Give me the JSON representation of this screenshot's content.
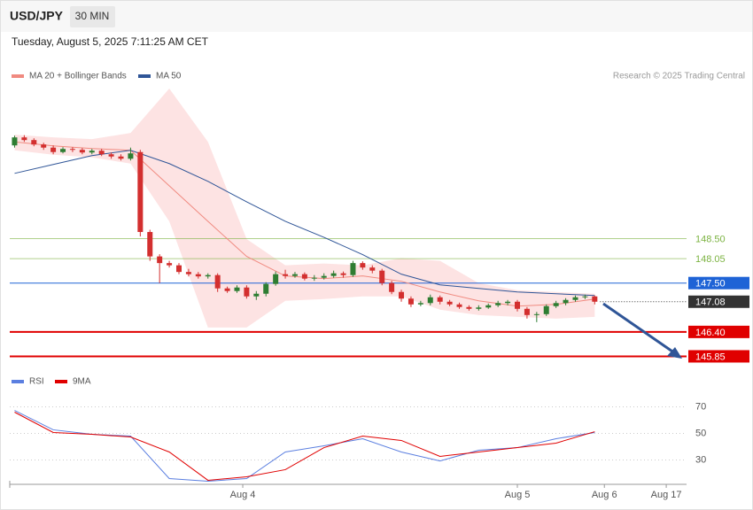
{
  "header": {
    "symbol": "USD/JPY",
    "interval": "30 MIN",
    "datetime": "Tuesday, August 5, 2025 7:11:25 AM CET"
  },
  "chart_data": [
    {
      "type": "candlestick",
      "source": "Research © 2025 Trading Central",
      "up_color": "#2e7d32",
      "down_color": "#d32f2f",
      "x": [
        0,
        1,
        2,
        3,
        4,
        5,
        6,
        7,
        8,
        9,
        10,
        11,
        12,
        13,
        14,
        15,
        16,
        17,
        18,
        19,
        20,
        21,
        22,
        23,
        24,
        25,
        26,
        27,
        28,
        29,
        30,
        31,
        32,
        33,
        34,
        35,
        36,
        37,
        38,
        39,
        40,
        41,
        42,
        43,
        44,
        45,
        46,
        47,
        48,
        49,
        50,
        51,
        52,
        53,
        54,
        55,
        56,
        57,
        58,
        59,
        60
      ],
      "open": [
        150.6,
        150.78,
        150.72,
        150.62,
        150.55,
        150.45,
        150.52,
        150.5,
        150.44,
        150.48,
        150.4,
        150.35,
        150.3,
        150.45,
        148.65,
        148.1,
        147.95,
        147.9,
        147.75,
        147.7,
        147.65,
        147.68,
        147.38,
        147.32,
        147.4,
        147.2,
        147.26,
        147.48,
        147.7,
        147.66,
        147.7,
        147.6,
        147.62,
        147.66,
        147.72,
        147.68,
        147.95,
        147.85,
        147.78,
        147.5,
        147.3,
        147.15,
        147.02,
        147.05,
        147.18,
        147.08,
        147.02,
        146.96,
        146.92,
        146.95,
        147,
        147.05,
        147.08,
        146.92,
        146.78,
        146.8,
        146.98,
        147.05,
        147.12,
        147.18,
        147.2
      ],
      "high": [
        150.82,
        150.83,
        150.76,
        150.66,
        150.6,
        150.56,
        150.56,
        150.54,
        150.52,
        150.52,
        150.44,
        150.4,
        150.55,
        150.5,
        148.7,
        148.15,
        148,
        147.95,
        147.82,
        147.75,
        147.72,
        147.72,
        147.42,
        147.45,
        147.45,
        147.32,
        147.52,
        147.76,
        147.8,
        147.75,
        147.74,
        147.68,
        147.72,
        147.78,
        147.76,
        148,
        147.99,
        147.9,
        147.82,
        147.55,
        147.35,
        147.2,
        147.1,
        147.24,
        147.22,
        147.12,
        147.06,
        147,
        147,
        147.04,
        147.1,
        147.12,
        147.12,
        146.96,
        146.85,
        147.02,
        147.1,
        147.16,
        147.22,
        147.24,
        147.22
      ],
      "low": [
        150.55,
        150.68,
        150.58,
        150.5,
        150.4,
        150.42,
        150.45,
        150.4,
        150.4,
        150.36,
        150.3,
        150.26,
        150.26,
        148.55,
        148,
        147.5,
        147.85,
        147.7,
        147.65,
        147.6,
        147.6,
        147.3,
        147.28,
        147.28,
        147.15,
        147.12,
        147.2,
        147.44,
        147.6,
        147.62,
        147.56,
        147.55,
        147.58,
        147.62,
        147.62,
        147.64,
        147.8,
        147.72,
        147.45,
        147.25,
        147.08,
        146.96,
        146.98,
        147,
        147.02,
        146.98,
        146.92,
        146.88,
        146.88,
        146.92,
        146.96,
        147,
        146.86,
        146.7,
        146.62,
        146.76,
        146.94,
        147,
        147.08,
        147.14,
        147.02
      ],
      "close": [
        150.78,
        150.72,
        150.62,
        150.55,
        150.45,
        150.52,
        150.5,
        150.44,
        150.48,
        150.4,
        150.35,
        150.3,
        150.42,
        148.65,
        148.1,
        147.95,
        147.9,
        147.75,
        147.7,
        147.65,
        147.68,
        147.38,
        147.32,
        147.4,
        147.2,
        147.26,
        147.48,
        147.7,
        147.66,
        147.7,
        147.6,
        147.62,
        147.66,
        147.72,
        147.68,
        147.95,
        147.85,
        147.78,
        147.5,
        147.3,
        147.15,
        147.02,
        147.05,
        147.18,
        147.08,
        147.02,
        146.96,
        146.92,
        146.95,
        147,
        147.05,
        147.08,
        146.92,
        146.78,
        146.8,
        146.98,
        147.05,
        147.12,
        147.18,
        147.2,
        147.08
      ],
      "overlay_x": [
        0,
        4,
        8,
        12,
        16,
        20,
        24,
        28,
        32,
        36,
        40,
        44,
        48,
        52,
        56,
        60
      ],
      "overlays": [
        {
          "name": "MA 20 + Bollinger Bands",
          "color": "#f08a80",
          "band_color": "#fde3e3",
          "values": [
            150.68,
            150.59,
            150.53,
            150.49,
            149.69,
            148.89,
            148.1,
            147.66,
            147.6,
            147.66,
            147.54,
            147.3,
            147.1,
            146.98,
            147.02,
            147.14
          ],
          "upper": [
            150.84,
            150.78,
            150.74,
            150.88,
            151.88,
            150.68,
            148.49,
            147.9,
            147.94,
            147.9,
            148.06,
            148,
            147.5,
            147.34,
            147.3,
            147.26
          ],
          "lower": [
            150.49,
            150.39,
            150.33,
            150.19,
            148.89,
            146.5,
            146.5,
            147.1,
            147.14,
            147.2,
            147.2,
            146.9,
            146.78,
            146.74,
            146.7,
            146.74
          ]
        },
        {
          "name": "MA 50",
          "color": "#2f5597",
          "values": [
            149.97,
            150.17,
            150.37,
            150.49,
            150.19,
            149.79,
            149.33,
            148.89,
            148.53,
            148.14,
            147.7,
            147.46,
            147.38,
            147.3,
            147.26,
            147.22
          ]
        }
      ],
      "levels": [
        {
          "value": 148.5,
          "label": "148.50",
          "color": "#7cb342",
          "box": false,
          "line": "solid"
        },
        {
          "value": 148.05,
          "label": "148.05",
          "color": "#7cb342",
          "box": false,
          "line": "solid"
        },
        {
          "value": 147.5,
          "label": "147.50",
          "color": "#1e63d6",
          "box": true,
          "line": "solid"
        },
        {
          "value": 147.08,
          "label": "147.08",
          "color": "#333333",
          "box": true,
          "line": "dotted"
        },
        {
          "value": 146.4,
          "label": "146.40",
          "color": "#e00000",
          "box": true,
          "line": "solid"
        },
        {
          "value": 145.85,
          "label": "145.85",
          "color": "#e00000",
          "box": true,
          "line": "solid"
        }
      ],
      "ylim": [
        145.6,
        151.9
      ],
      "xlim": [
        -0.5,
        69.5
      ]
    },
    {
      "type": "line",
      "x": [
        0,
        4,
        8,
        12,
        16,
        20,
        24,
        28,
        32,
        36,
        40,
        44,
        48,
        52,
        56,
        60
      ],
      "series": [
        {
          "name": "RSI",
          "color": "#5b7fe0",
          "values": [
            67.3,
            52.7,
            49.3,
            48,
            16,
            14,
            16,
            36,
            40.7,
            46,
            36,
            29.3,
            37.3,
            39.3,
            46,
            50.7
          ]
        },
        {
          "name": "9MA",
          "color": "#e00000",
          "values": [
            66,
            50.7,
            49.3,
            47.3,
            36,
            14.7,
            17.3,
            22.7,
            39.3,
            48,
            44.7,
            32.7,
            36,
            39.3,
            42.7,
            51.3
          ]
        }
      ],
      "ylim": [
        10,
        83
      ],
      "yticks": [
        30,
        50,
        70
      ],
      "grid": true,
      "xlim": [
        -0.5,
        69.5
      ],
      "xticks": [
        {
          "value": 23.6,
          "label": "Aug 4"
        },
        {
          "value": 52,
          "label": "Aug 5"
        },
        {
          "value": 61,
          "label": "Aug 6"
        },
        {
          "value": 67.4,
          "label": "Aug 17"
        }
      ]
    }
  ]
}
